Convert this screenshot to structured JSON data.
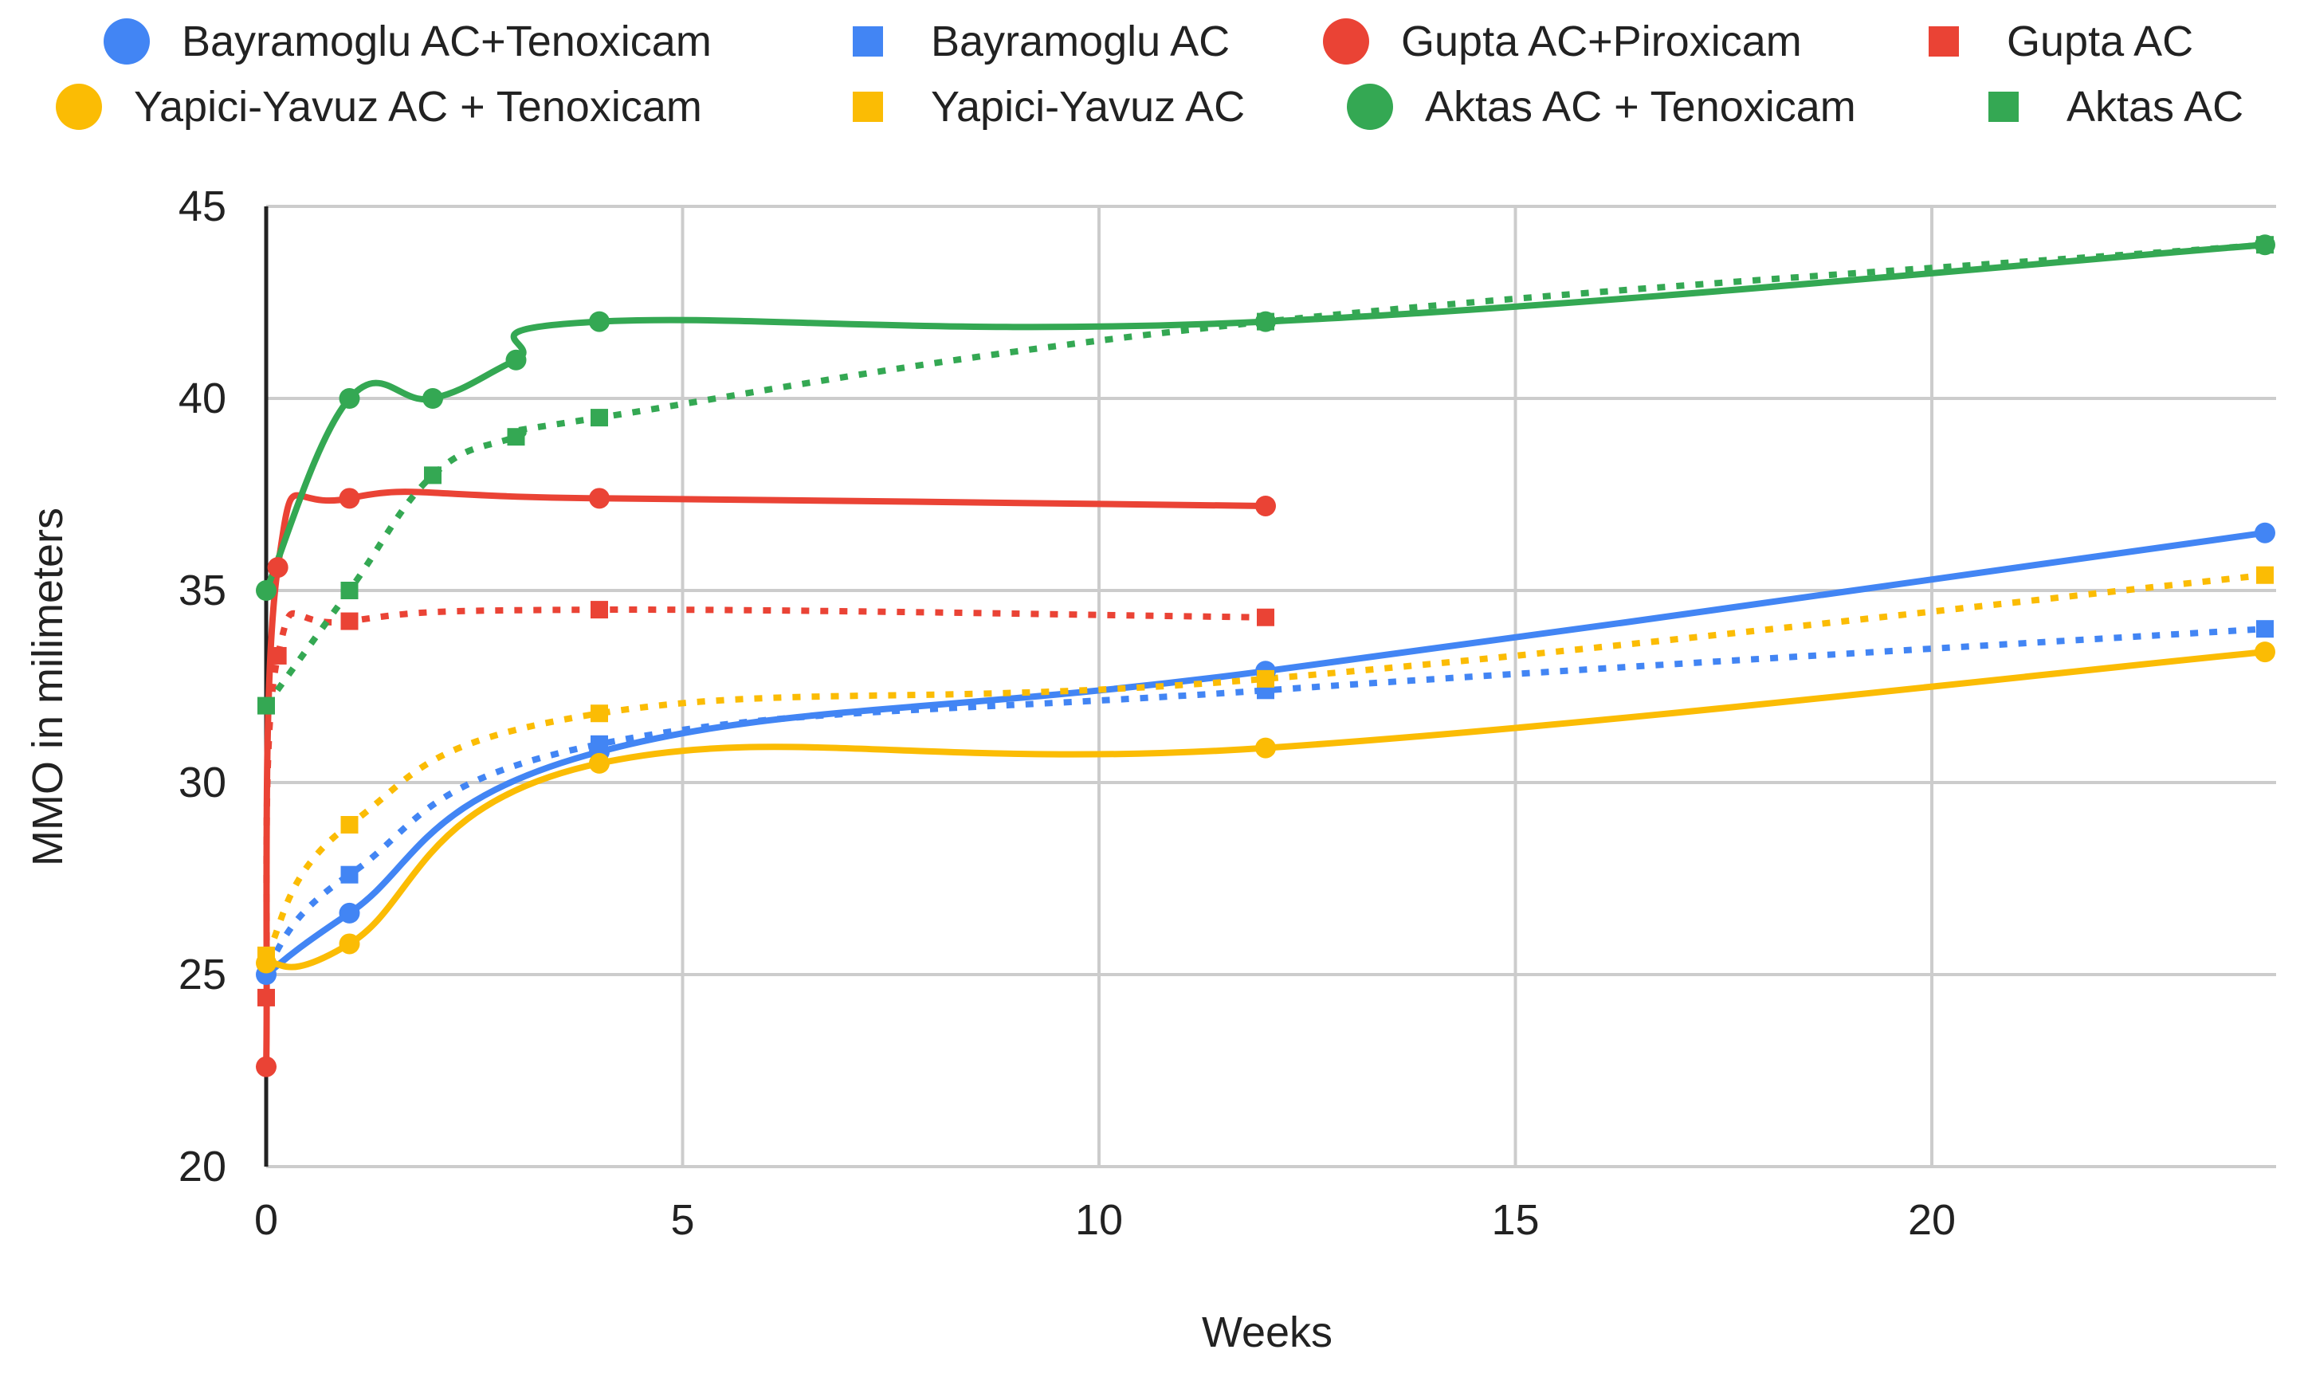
{
  "chart_data": {
    "type": "line",
    "title": "",
    "xlabel": "Weeks",
    "ylabel": "MMO in milimeters",
    "xlim": [
      0,
      24
    ],
    "ylim": [
      20,
      45
    ],
    "xticks": [
      0,
      5,
      10,
      15,
      20
    ],
    "yticks": [
      20,
      25,
      30,
      35,
      40,
      45
    ],
    "grid": true,
    "legend_position": "top",
    "series": [
      {
        "name": "Bayramoglu AC+Tenoxicam",
        "color": "#4285F4",
        "marker": "circle",
        "style": "solid",
        "x": [
          0,
          1,
          4,
          12,
          24
        ],
        "y": [
          25.0,
          26.6,
          30.8,
          32.9,
          36.5
        ]
      },
      {
        "name": "Bayramoglu AC",
        "color": "#4285F4",
        "marker": "square",
        "style": "dotted",
        "x": [
          0,
          1,
          4,
          12,
          24
        ],
        "y": [
          25.2,
          27.6,
          31.0,
          32.4,
          34.0
        ]
      },
      {
        "name": "Gupta AC+Piroxicam",
        "color": "#EA4335",
        "marker": "circle",
        "style": "solid",
        "x": [
          0,
          0.14,
          1,
          4,
          12
        ],
        "y": [
          22.6,
          35.6,
          37.4,
          37.4,
          37.2
        ]
      },
      {
        "name": "Gupta AC",
        "color": "#EA4335",
        "marker": "square",
        "style": "dotted",
        "x": [
          0,
          0.14,
          1,
          4,
          12
        ],
        "y": [
          24.4,
          33.3,
          34.2,
          34.5,
          34.3
        ]
      },
      {
        "name": "Yapici-Yavuz AC + Tenoxicam",
        "color": "#FBBC04",
        "marker": "circle",
        "style": "solid",
        "x": [
          0,
          1,
          4,
          12,
          24
        ],
        "y": [
          25.3,
          25.8,
          30.5,
          30.9,
          33.4
        ]
      },
      {
        "name": "Yapici-Yavuz AC",
        "color": "#FBBC04",
        "marker": "square",
        "style": "dotted",
        "x": [
          0,
          1,
          4,
          12,
          24
        ],
        "y": [
          25.5,
          28.9,
          31.8,
          32.7,
          35.4
        ]
      },
      {
        "name": "Aktas AC + Tenoxicam",
        "color": "#34A853",
        "marker": "circle",
        "style": "solid",
        "x": [
          0,
          1,
          2,
          3,
          4,
          12,
          24
        ],
        "y": [
          35,
          40,
          40,
          41,
          42,
          42,
          44
        ]
      },
      {
        "name": "Aktas AC",
        "color": "#34A853",
        "marker": "square",
        "style": "dotted",
        "x": [
          0,
          1,
          2,
          3,
          4,
          12,
          24
        ],
        "y": [
          32,
          35,
          38,
          39,
          39.5,
          42,
          44
        ]
      }
    ]
  }
}
